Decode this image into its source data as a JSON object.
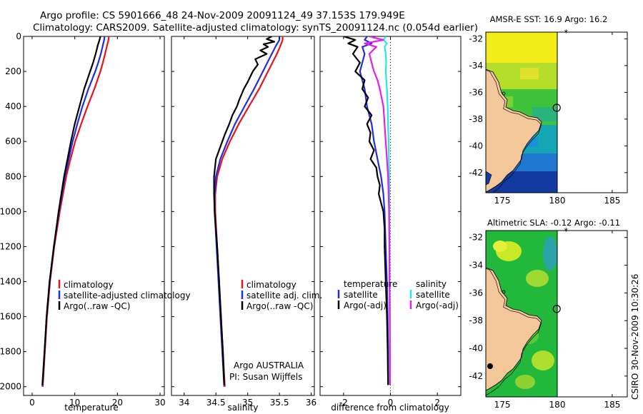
{
  "header": {
    "line1": "Argo profile: CS 5901666_48 24-Nov-2009 20091124_49 37.153S 179.949E",
    "line2": "Climatology: CARS2009. Satellite-adjusted climatology: synTS_20091124.nc (0.054d earlier)"
  },
  "colors": {
    "clim": "#e8141c",
    "sat": "#1f2fe0",
    "argo": "#000000",
    "sat_sal": "#22e8ee",
    "argo_adj": "#e81ee8"
  },
  "chart_data": [
    {
      "type": "line",
      "id": "temperature",
      "xlabel": "temperature",
      "xlim": [
        -2,
        31
      ],
      "ylim": [
        2050,
        0
      ],
      "xticks": [
        0,
        10,
        20,
        30
      ],
      "xtick_labels": [
        "0",
        "10",
        "20",
        "30"
      ],
      "yticks": [
        0,
        200,
        400,
        600,
        800,
        1000,
        1200,
        1400,
        1600,
        1800,
        2000
      ],
      "ytick_labels": [
        "0",
        "200",
        "400",
        "600",
        "800",
        "1000",
        "1200",
        "1400",
        "1600",
        "1800",
        "2000"
      ],
      "legend": [
        "climatology",
        "satellite-adjusted climatology",
        "Argo(..raw -QC)"
      ],
      "series": [
        {
          "name": "climatology",
          "color": "clim",
          "depth": [
            0,
            20,
            50,
            100,
            150,
            200,
            300,
            400,
            500,
            600,
            700,
            800,
            1000,
            1200,
            1400,
            1600,
            1800,
            2000
          ],
          "values": [
            18,
            17.9,
            17.6,
            17.1,
            16.6,
            16,
            14.6,
            13,
            11.5,
            10.1,
            9,
            8,
            6.5,
            5.2,
            4.2,
            3.5,
            3,
            2.5
          ]
        },
        {
          "name": "satellite-adjusted climatology",
          "color": "sat",
          "depth": [
            0,
            20,
            50,
            100,
            150,
            200,
            300,
            400,
            500,
            600,
            700,
            800,
            1000,
            1200,
            1400,
            1600,
            1800,
            2000
          ],
          "values": [
            17,
            16.9,
            16.6,
            16.1,
            15.5,
            14.8,
            13.2,
            11.8,
            10.6,
            9.5,
            8.6,
            7.7,
            6.3,
            5.1,
            4.1,
            3.4,
            2.9,
            2.4
          ]
        },
        {
          "name": "Argo(..raw -QC)",
          "color": "argo",
          "depth": [
            0,
            20,
            50,
            100,
            150,
            200,
            300,
            400,
            500,
            600,
            700,
            800,
            1000,
            1200,
            1400,
            1600,
            1800,
            1990
          ],
          "values": [
            16,
            15.8,
            15.4,
            14.9,
            14.3,
            13.6,
            12.2,
            11.1,
            10,
            9.1,
            8.3,
            7.5,
            6.2,
            5.1,
            4.1,
            3.4,
            2.9,
            2.4
          ]
        }
      ]
    },
    {
      "type": "line",
      "id": "salinity",
      "xlabel": "salinity",
      "xlim": [
        33.8,
        36.05
      ],
      "ylim": [
        2050,
        0
      ],
      "xticks": [
        34,
        34.5,
        35,
        35.5,
        36
      ],
      "xtick_labels": [
        "34",
        "34.5",
        "35",
        "35.5",
        "36"
      ],
      "legend": [
        "climatology",
        "satellite adj. clim.",
        "Argo(..raw -QC)"
      ],
      "note": [
        "Argo AUSTRALIA",
        "PI: Susan Wijffels"
      ],
      "series": [
        {
          "name": "climatology",
          "color": "clim",
          "depth": [
            0,
            20,
            50,
            100,
            200,
            300,
            400,
            500,
            600,
            700,
            800,
            900,
            1000,
            1200,
            1400,
            1600,
            1800,
            2000
          ],
          "values": [
            35.55,
            35.55,
            35.52,
            35.46,
            35.32,
            35.18,
            35.02,
            34.86,
            34.72,
            34.6,
            34.52,
            34.49,
            34.49,
            34.52,
            34.55,
            34.58,
            34.61,
            34.64
          ]
        },
        {
          "name": "satellite adj. clim.",
          "color": "sat",
          "depth": [
            0,
            20,
            50,
            100,
            200,
            300,
            400,
            500,
            600,
            700,
            800,
            900,
            1000,
            1200,
            1400,
            1600,
            1800,
            2000
          ],
          "values": [
            35.5,
            35.5,
            35.45,
            35.38,
            35.24,
            35.1,
            34.95,
            34.8,
            34.68,
            34.57,
            34.5,
            34.48,
            34.48,
            34.51,
            34.54,
            34.57,
            34.6,
            34.63
          ]
        },
        {
          "name": "Argo(..raw -QC)",
          "color": "argo",
          "depth": [
            0,
            15,
            30,
            45,
            60,
            80,
            100,
            130,
            160,
            200,
            260,
            300,
            360,
            400,
            450,
            500,
            560,
            600,
            700,
            800,
            900,
            1000,
            1200,
            1400,
            1600,
            1800,
            1990
          ],
          "values": [
            35.38,
            35.3,
            35.42,
            35.25,
            35.32,
            35.2,
            35.3,
            35.12,
            35.16,
            35.08,
            35.0,
            34.94,
            34.87,
            34.83,
            34.76,
            34.71,
            34.64,
            34.6,
            34.5,
            34.47,
            34.47,
            34.48,
            34.52,
            34.55,
            34.58,
            34.61,
            34.63
          ]
        }
      ]
    },
    {
      "type": "line",
      "id": "difference",
      "xlabel": "difference from climatology",
      "xlim": [
        -3,
        3
      ],
      "ylim": [
        2050,
        0
      ],
      "xticks": [
        -2,
        0,
        2
      ],
      "xtick_labels": [
        "-2",
        "0",
        "2"
      ],
      "legend_left_title": "temperature",
      "legend_left": [
        "satellite",
        "Argo(-adj)"
      ],
      "legend_right_title": "salinity",
      "legend_right": [
        "satellite",
        "Argo(-adj)"
      ],
      "series": [
        {
          "name": "temperature satellite",
          "color": "sat",
          "depth": [
            0,
            20,
            40,
            60,
            100,
            150,
            200,
            300,
            400,
            500,
            600,
            700,
            800,
            900,
            1000,
            1200,
            1400,
            1600,
            1800,
            1990
          ],
          "values": [
            -1,
            -1.1,
            -0.8,
            -1.2,
            -1.1,
            -1.2,
            -1.3,
            -1.1,
            -1.0,
            -0.8,
            -0.7,
            -0.55,
            -0.4,
            -0.3,
            -0.25,
            -0.2,
            -0.15,
            -0.12,
            -0.1,
            -0.1
          ]
        },
        {
          "name": "temperature Argo(-adj)",
          "color": "argo",
          "depth": [
            0,
            20,
            40,
            60,
            100,
            150,
            200,
            250,
            300,
            350,
            400,
            450,
            500,
            550,
            600,
            650,
            700,
            750,
            800,
            850,
            900,
            1000,
            1100,
            1200,
            1400,
            1600,
            1800,
            1990
          ],
          "values": [
            -2.0,
            -1.5,
            -1.8,
            -1.4,
            -1.6,
            -1.3,
            -1.5,
            -1.1,
            -1.2,
            -0.95,
            -1.1,
            -0.8,
            -1.0,
            -0.85,
            -0.9,
            -0.7,
            -0.85,
            -0.6,
            -0.55,
            -0.45,
            -0.5,
            -0.3,
            -0.25,
            -0.25,
            -0.2,
            -0.15,
            -0.12,
            -0.1
          ]
        },
        {
          "name": "salinity satellite",
          "color": "sat_sal",
          "depth": [
            0,
            20,
            40,
            60,
            100,
            150,
            200,
            300,
            400,
            500,
            600,
            700,
            800,
            1000,
            1200,
            1400,
            1600,
            1800,
            1990
          ],
          "values": [
            -0.2,
            -0.3,
            -0.15,
            -0.25,
            -0.2,
            -0.18,
            -0.2,
            -0.15,
            -0.12,
            -0.1,
            -0.08,
            -0.07,
            -0.05,
            -0.04,
            -0.03,
            -0.03,
            -0.02,
            -0.02,
            -0.02
          ]
        },
        {
          "name": "salinity Argo(-adj)",
          "color": "argo_adj",
          "depth": [
            0,
            20,
            40,
            60,
            100,
            150,
            200,
            250,
            300,
            400,
            500,
            600,
            700,
            800,
            900,
            1000,
            1200,
            1400,
            1600,
            1800,
            1990
          ],
          "values": [
            -0.9,
            -0.3,
            -1.1,
            -0.6,
            -0.9,
            -0.8,
            -0.7,
            -0.55,
            -0.45,
            -0.3,
            -0.25,
            -0.2,
            -0.15,
            -0.1,
            -0.08,
            -0.06,
            -0.05,
            -0.04,
            -0.03,
            -0.02,
            -0.02
          ]
        }
      ]
    },
    {
      "type": "heatmap",
      "id": "sst_map",
      "title": "AMSR-E SST: 16.9 Argo: 16.2",
      "xlim": [
        173.5,
        186.5
      ],
      "ylim": [
        -43.5,
        -31.5
      ],
      "data_lon_max": 180,
      "xticks": [
        175,
        180,
        185
      ],
      "xtick_labels": [
        "175",
        "180",
        "185"
      ],
      "yticks": [
        -32,
        -34,
        -36,
        -38,
        -40,
        -42
      ],
      "ytick_labels": [
        "-32",
        "-34",
        "-36",
        "-38",
        "-40",
        "-42"
      ],
      "float_position": {
        "lon": 179.949,
        "lat": -37.153
      },
      "star_position": {
        "lon": 180.8,
        "lat": -31.6
      }
    },
    {
      "type": "heatmap",
      "id": "sla_map",
      "title": "Altimetric SLA: -0.12 Argo: -0.11",
      "xlim": [
        173.5,
        186.5
      ],
      "ylim": [
        -43.5,
        -31.5
      ],
      "data_lon_max": 180,
      "xticks": [
        175,
        180,
        185
      ],
      "xtick_labels": [
        "175",
        "180",
        "185"
      ],
      "yticks": [
        -32,
        -34,
        -36,
        -38,
        -40,
        -42
      ],
      "ytick_labels": [
        "-32",
        "-34",
        "-36",
        "-38",
        "-40",
        "-42"
      ],
      "float_position": {
        "lon": 179.949,
        "lat": -37.153
      },
      "star_position": {
        "lon": 180.8,
        "lat": -31.6
      }
    }
  ],
  "footer": {
    "stamp": "CSIRO 30-Nov-2009 10:30:26"
  }
}
